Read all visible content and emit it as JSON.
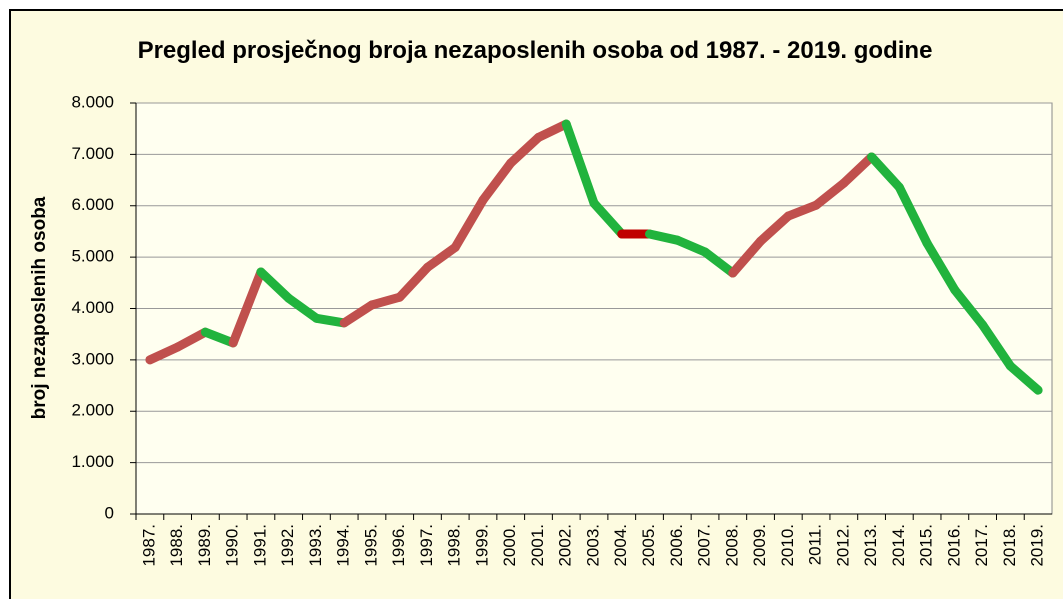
{
  "chart_data": {
    "type": "line",
    "title": "Pregled prosječnog broja nezaposlenih osoba od 1987. - 2019. godine",
    "y_label": "broj nezaposlenih osoba",
    "categories": [
      "1987.",
      "1988.",
      "1989.",
      "1990.",
      "1991.",
      "1992.",
      "1993.",
      "1994.",
      "1995.",
      "1996.",
      "1997.",
      "1998.",
      "1999.",
      "2000.",
      "2001.",
      "2002.",
      "2003.",
      "2004.",
      "2005.",
      "2006.",
      "2007.",
      "2008.",
      "2009.",
      "2010.",
      "2011.",
      "2012.",
      "2013.",
      "2014.",
      "2015.",
      "2016.",
      "2017.",
      "2018.",
      "2019."
    ],
    "values": [
      3000,
      3250,
      3540,
      3330,
      4710,
      4200,
      3810,
      3720,
      4070,
      4220,
      4800,
      5190,
      6110,
      6830,
      7330,
      7590,
      6050,
      5450,
      5450,
      5330,
      5100,
      4690,
      5310,
      5800,
      6010,
      6440,
      6950,
      6360,
      5270,
      4360,
      3680,
      2880,
      2410
    ],
    "rise_color": "#c0504d",
    "fall_color": "#21b33d",
    "flat_color": "#c00000",
    "ylim": [
      0,
      8000
    ],
    "yticks": [
      0,
      {
        "value": 1000,
        "label": "1.000"
      },
      {
        "value": 2000,
        "label": "2.000"
      },
      {
        "value": 3000,
        "label": "3.000"
      },
      {
        "value": 4000,
        "label": "4.000"
      },
      {
        "value": 5000,
        "label": "5.000"
      },
      {
        "value": 6000,
        "label": "6.000"
      },
      {
        "value": 7000,
        "label": "7.000"
      },
      {
        "value": 8000,
        "label": "8.000"
      }
    ],
    "grid": true
  }
}
